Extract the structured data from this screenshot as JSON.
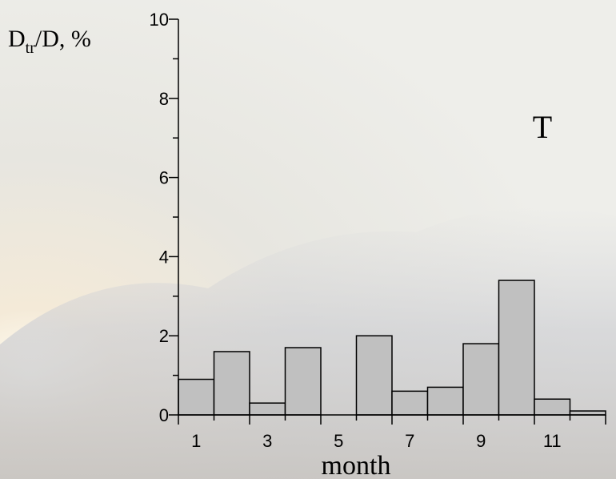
{
  "chart_data": {
    "type": "bar",
    "ylabel": {
      "main": "D",
      "sub": "tr",
      "rest": "/D, %"
    },
    "xlabel": "month",
    "annotation": "T",
    "categories": [
      "1",
      null,
      "3",
      null,
      "5",
      null,
      "7",
      null,
      "9",
      null,
      "11",
      null
    ],
    "values": [
      0.9,
      1.6,
      0.3,
      1.7,
      0,
      2.0,
      0.6,
      0.7,
      1.8,
      3.4,
      0.4,
      0.1
    ],
    "color": "#c0c0c0",
    "ylim": [
      0,
      10
    ],
    "yticks": [
      0,
      2,
      4,
      6,
      8,
      10
    ]
  }
}
